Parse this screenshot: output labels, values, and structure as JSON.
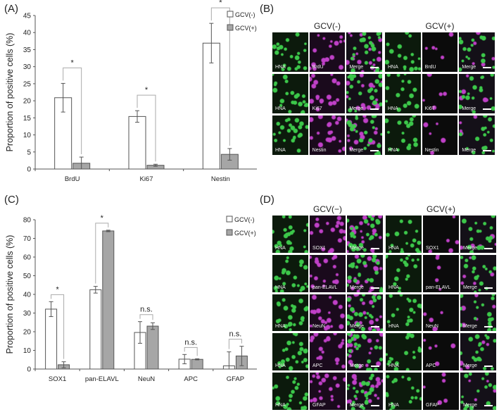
{
  "panels": {
    "A": "(A)",
    "B": "(B)",
    "C": "(C)",
    "D": "(D)"
  },
  "chart_data": [
    {
      "type": "bar",
      "panel": "A",
      "categories": [
        "BrdU",
        "Ki67",
        "Nestin"
      ],
      "series": [
        {
          "name": "GCV(-)",
          "values": [
            20.9,
            15.4,
            36.9
          ],
          "errors": [
            4.2,
            1.7,
            5.8
          ],
          "color": "#ffffff"
        },
        {
          "name": "GCV(+)",
          "values": [
            1.7,
            1.1,
            4.3
          ],
          "errors": [
            1.8,
            0.3,
            1.7
          ],
          "color": "#a6a6a6"
        }
      ],
      "ylabel": "Proportion of positive cells (%)",
      "ylim": [
        0,
        45
      ],
      "yticks": [
        0,
        5,
        10,
        15,
        20,
        25,
        30,
        35,
        40,
        45
      ],
      "annotations": [
        "*",
        "*",
        "*"
      ],
      "legend_position": "top-right",
      "grid": false
    },
    {
      "type": "bar",
      "panel": "C",
      "categories": [
        "SOX1",
        "pan-ELAVL",
        "NeuN",
        "APC",
        "GFAP"
      ],
      "series": [
        {
          "name": "GCV(-)",
          "values": [
            32.1,
            42.5,
            19.6,
            5.3,
            1.7
          ],
          "errors": [
            4.0,
            1.8,
            5.8,
            2.5,
            7.5
          ],
          "color": "#ffffff"
        },
        {
          "name": "GCV(+)",
          "values": [
            2.3,
            74.0,
            23.0,
            5.2,
            7.0
          ],
          "errors": [
            1.6,
            0.4,
            1.8,
            0.3,
            5.2
          ],
          "color": "#a6a6a6"
        }
      ],
      "ylabel": "Proportion of positive cells (%)",
      "ylim": [
        0,
        80
      ],
      "yticks": [
        0,
        10,
        20,
        30,
        40,
        50,
        60,
        70,
        80
      ],
      "annotations": [
        "*",
        "*",
        "n.s.",
        "n.s.",
        "n.s."
      ],
      "legend_position": "top-right",
      "grid": false
    }
  ],
  "micrographs": {
    "B": {
      "titles": [
        "GCV(-)",
        "GCV(+)"
      ],
      "rows": [
        [
          "HNA",
          "BrdU",
          "Merge"
        ],
        [
          "HNA",
          "Ki67",
          "Merge"
        ],
        [
          "HNA",
          "Nestin",
          "Merge"
        ]
      ]
    },
    "D": {
      "titles": [
        "GCV(−)",
        "GCV(+)"
      ],
      "rows": [
        [
          "HNA",
          "SOX1",
          "Merge"
        ],
        [
          "HNA",
          "pan-ELAVL",
          "Merge"
        ],
        [
          "HNA",
          "NeuN",
          "Merge"
        ],
        [
          "HNA",
          "APC",
          "Merge"
        ],
        [
          "HNA",
          "GFAP",
          "Merge"
        ]
      ]
    }
  },
  "colors": {
    "hna_green": "#3cc84a",
    "marker_magenta": "#c040c8",
    "bar_gray": "#a6a6a6"
  }
}
